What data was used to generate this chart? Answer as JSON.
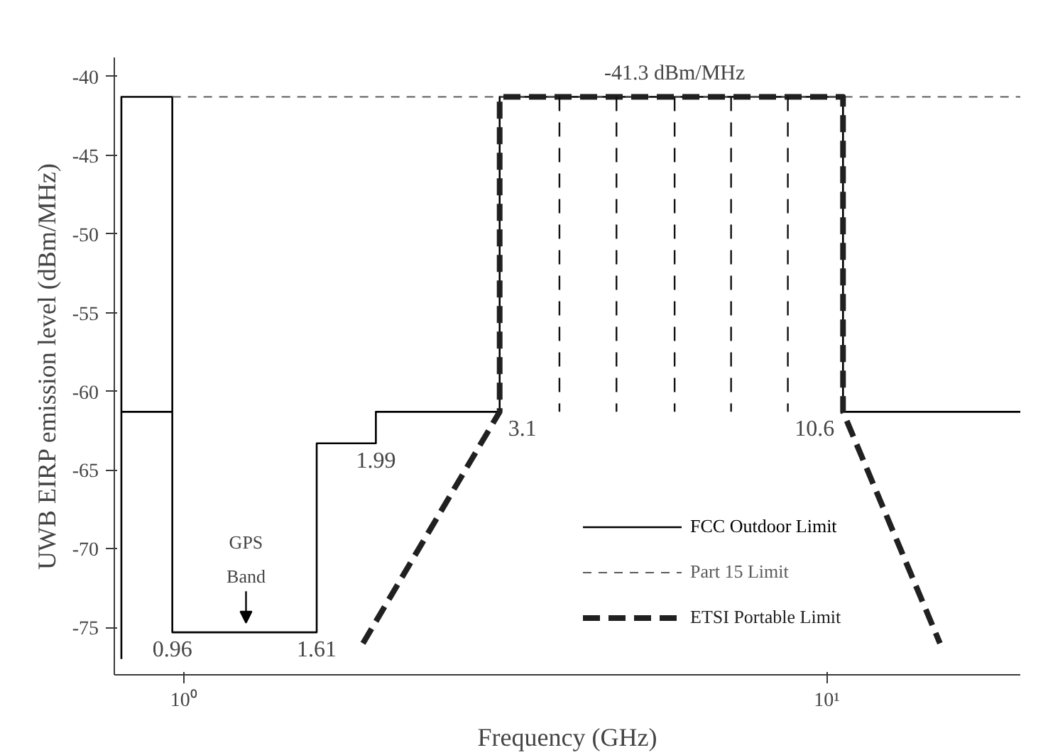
{
  "chart_data": {
    "type": "line",
    "xlabel": "Frequency (GHz)",
    "ylabel": "UWB EIRP emission level (dBm/MHz)",
    "log": "x",
    "xlim": [
      0.78,
      20
    ],
    "xticks": [
      {
        "value": 1,
        "label": "10⁰"
      },
      {
        "value": 10,
        "label": "10¹"
      }
    ],
    "ylim": [
      -78,
      -38.8
    ],
    "yticks": [
      -40,
      -45,
      -50,
      -55,
      -60,
      -65,
      -70,
      -75
    ],
    "grid": false,
    "legend": "bottom right",
    "marker": "none",
    "series": [
      {
        "name": "FCC Outdoor Limit",
        "color": "#000000",
        "line_style": "solid",
        "x": [
          0.8,
          0.8,
          0.96,
          0.96,
          1.61,
          1.61,
          1.99,
          1.99,
          3.1,
          3.1,
          10.6,
          10.6,
          20,
          null,
          0.8,
          0.96
        ],
        "values": [
          -77,
          -41.3,
          -41.3,
          -75.3,
          -75.3,
          -63.3,
          -63.3,
          -61.3,
          -61.3,
          -41.3,
          -41.3,
          -61.3,
          -61.3,
          null,
          -61.3,
          -61.3
        ]
      },
      {
        "name": "Part 15 Limit",
        "color": "#5a5a5a",
        "line_style": "dashed",
        "x": [
          0.96,
          20
        ],
        "values": [
          -41.3,
          -41.3
        ]
      },
      {
        "name": "ETSI Portable Limit",
        "color": "#202020",
        "line_style": "dashed",
        "x": [
          1.9,
          3.1,
          3.1,
          10.6,
          10.6,
          15
        ],
        "values": [
          -76,
          -61.3,
          -41.3,
          -41.3,
          -61.3,
          -76
        ]
      },
      {
        "color": "#111111",
        "line_style": "dashed",
        "x": [
          3.84,
          3.84,
          null,
          4.71,
          4.71,
          null,
          5.8,
          5.8,
          null,
          7.1,
          7.1,
          null,
          8.7,
          8.7
        ],
        "values": [
          -41.3,
          -61.3,
          null,
          -41.3,
          -61.3,
          null,
          -41.3,
          -61.3,
          null,
          -41.3,
          -61.3,
          null,
          -41.3,
          -61.3
        ]
      }
    ],
    "annotations": [
      {
        "text": "-41.3 dBm/MHz",
        "x": 5.8,
        "y": -41.3
      },
      {
        "text": "0.96",
        "x": 0.96,
        "y": -75.3
      },
      {
        "text": "1.61",
        "x": 1.61,
        "y": -75.3
      },
      {
        "text": "1.99",
        "x": 1.99,
        "y": -63.3
      },
      {
        "text": "3.1",
        "x": 3.1,
        "y": -61.3
      },
      {
        "text": "10.6",
        "x": 10.6,
        "y": -61.3
      },
      {
        "text": "GPS\nBand",
        "x": 1.25,
        "y": -75.3
      }
    ]
  }
}
